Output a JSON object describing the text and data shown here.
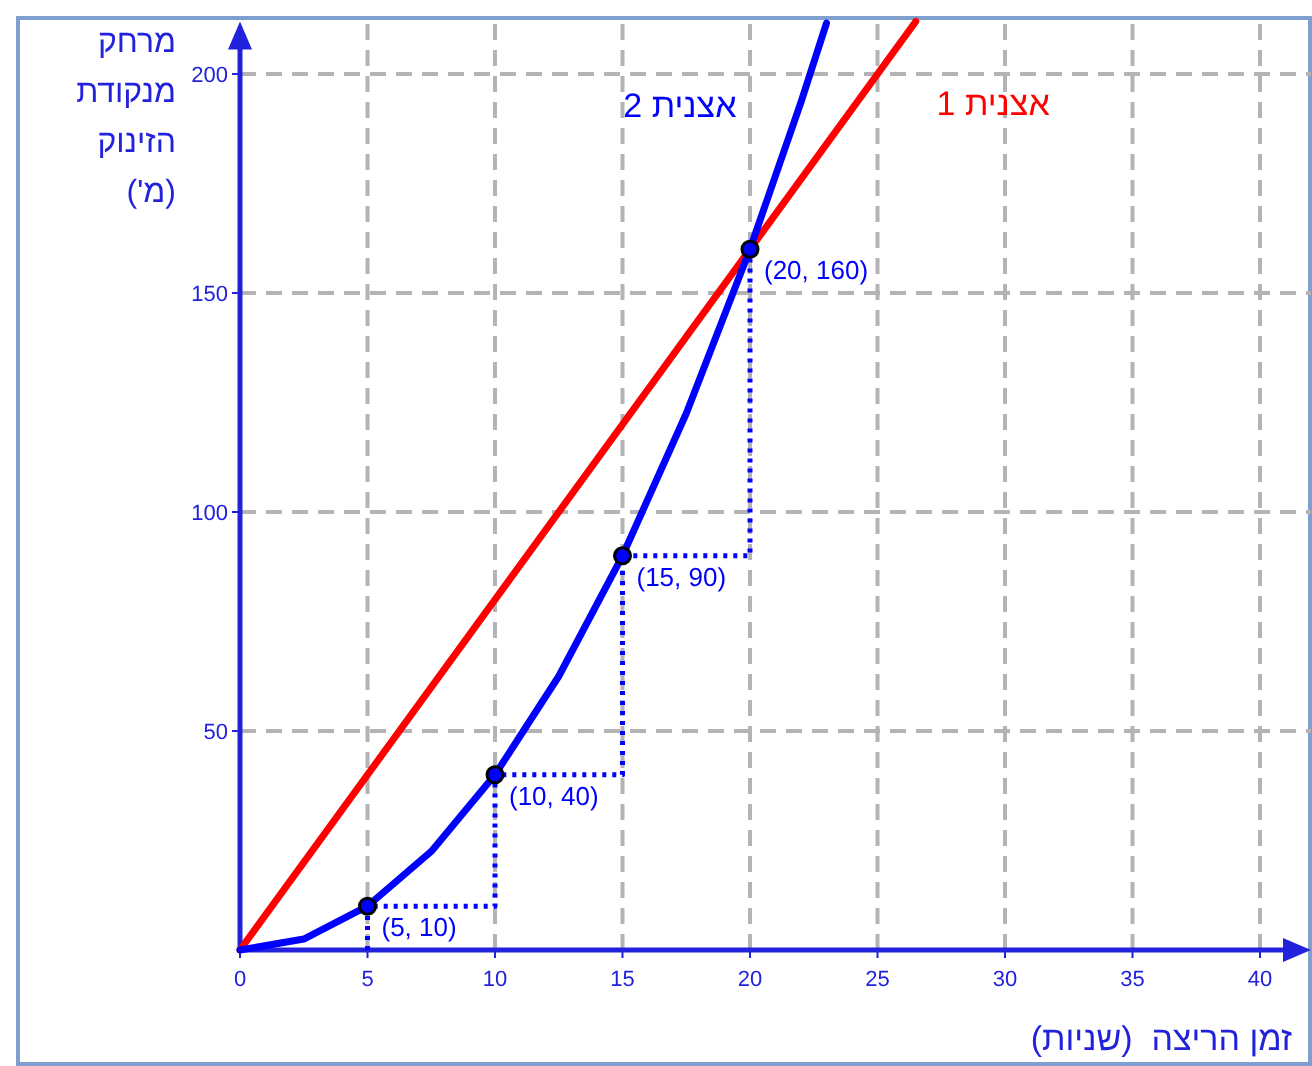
{
  "chart_data": {
    "type": "line",
    "xlabel": "זמן הריצה  (שניות)",
    "ylabel": "מרחק מנקודת הזינוק (מ')",
    "xlim": [
      0,
      42
    ],
    "ylim": [
      0,
      212
    ],
    "xticks": [
      0,
      5,
      10,
      15,
      20,
      25,
      30,
      35,
      40
    ],
    "yticks": [
      50,
      100,
      150,
      200
    ],
    "grid": true,
    "legend": false,
    "series": [
      {
        "name": "אצנית 1",
        "color": "#ff0000",
        "x": [
          0,
          26.5
        ],
        "values": [
          0,
          212
        ]
      },
      {
        "name": "אצנית 2",
        "color": "#0000ff",
        "x": [
          0,
          2.5,
          5,
          7.5,
          10,
          12.5,
          15,
          17.5,
          20,
          22,
          23
        ],
        "values": [
          0,
          2.5,
          10,
          22.5,
          40,
          62.5,
          90,
          122.5,
          160,
          193.6,
          211.6
        ]
      },
      {
        "type": "line",
        "line_style": "dotted",
        "color": "#0000ff",
        "x": [
          5,
          5,
          10,
          10,
          15,
          15,
          20,
          20
        ],
        "values": [
          0,
          10,
          10,
          40,
          40,
          90,
          90,
          160
        ]
      },
      {
        "type": "scatter",
        "marker": "circle",
        "color": "#0000ff",
        "x": [
          5,
          10,
          15,
          20
        ],
        "values": [
          10,
          40,
          90,
          160
        ],
        "value_labels": [
          "(5, 10)",
          "(10, 40)",
          "(15, 90)",
          "(20, 160)"
        ]
      }
    ]
  }
}
